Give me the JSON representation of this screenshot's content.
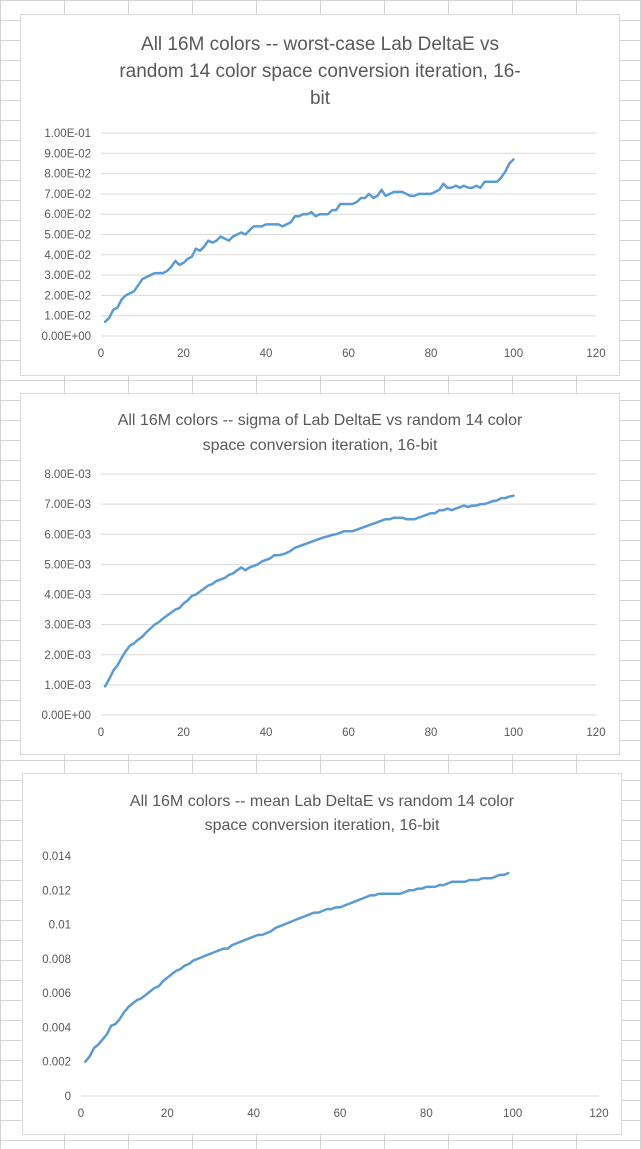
{
  "chart_data": [
    {
      "type": "line",
      "title": "All 16M colors -- worst-case Lab DeltaE vs random 14 color space conversion iteration, 16-bit",
      "title_lines": [
        "All 16M colors -- worst-case Lab DeltaE vs",
        "random 14 color space conversion iteration, 16-",
        "bit"
      ],
      "xlim": [
        0,
        120
      ],
      "x_ticks": [
        "0",
        "20",
        "40",
        "60",
        "80",
        "100",
        "120"
      ],
      "ylim": [
        0,
        0.1
      ],
      "y_ticks": [
        "0.00E+00",
        "1.00E-02",
        "2.00E-02",
        "3.00E-02",
        "4.00E-02",
        "5.00E-02",
        "6.00E-02",
        "7.00E-02",
        "8.00E-02",
        "9.00E-02",
        "1.00E-01"
      ],
      "grid": true,
      "line_color": "#5b9bd5",
      "series": [
        {
          "x": [
            1,
            2,
            3,
            4,
            5,
            6,
            7,
            8,
            9,
            10,
            11,
            12,
            13,
            14,
            15,
            16,
            17,
            18,
            19,
            20,
            21,
            22,
            23,
            24,
            25,
            26,
            27,
            28,
            29,
            30,
            31,
            32,
            33,
            34,
            35,
            36,
            37,
            38,
            39,
            40,
            41,
            42,
            43,
            44,
            45,
            46,
            47,
            48,
            49,
            50,
            51,
            52,
            53,
            54,
            55,
            56,
            57,
            58,
            59,
            60,
            61,
            62,
            63,
            64,
            65,
            66,
            67,
            68,
            69,
            70,
            71,
            72,
            73,
            74,
            75,
            76,
            77,
            78,
            79,
            80,
            81,
            82,
            83,
            84,
            85,
            86,
            87,
            88,
            89,
            90,
            91,
            92,
            93,
            94,
            95,
            96,
            97,
            98,
            99,
            100
          ],
          "y": [
            0.007,
            0.009,
            0.013,
            0.014,
            0.018,
            0.02,
            0.021,
            0.022,
            0.025,
            0.028,
            0.029,
            0.03,
            0.031,
            0.031,
            0.031,
            0.032,
            0.034,
            0.037,
            0.035,
            0.036,
            0.038,
            0.039,
            0.043,
            0.042,
            0.044,
            0.047,
            0.046,
            0.047,
            0.049,
            0.048,
            0.047,
            0.049,
            0.05,
            0.051,
            0.05,
            0.052,
            0.054,
            0.054,
            0.054,
            0.055,
            0.055,
            0.055,
            0.055,
            0.054,
            0.055,
            0.056,
            0.059,
            0.059,
            0.06,
            0.06,
            0.061,
            0.059,
            0.06,
            0.06,
            0.06,
            0.062,
            0.062,
            0.065,
            0.065,
            0.065,
            0.065,
            0.066,
            0.068,
            0.068,
            0.07,
            0.068,
            0.069,
            0.072,
            0.069,
            0.07,
            0.071,
            0.071,
            0.071,
            0.07,
            0.069,
            0.069,
            0.07,
            0.07,
            0.07,
            0.07,
            0.071,
            0.072,
            0.075,
            0.073,
            0.073,
            0.074,
            0.073,
            0.074,
            0.073,
            0.073,
            0.074,
            0.073,
            0.076,
            0.076,
            0.076,
            0.076,
            0.078,
            0.081,
            0.085,
            0.087
          ]
        }
      ]
    },
    {
      "type": "line",
      "title": "All 16M colors -- sigma of Lab DeltaE vs random 14 color space conversion iteration, 16-bit",
      "title_lines": [
        "All 16M colors -- sigma of Lab DeltaE vs random 14 color",
        "space conversion iteration, 16-bit"
      ],
      "xlim": [
        0,
        120
      ],
      "x_ticks": [
        "0",
        "20",
        "40",
        "60",
        "80",
        "100",
        "120"
      ],
      "ylim": [
        0,
        0.008
      ],
      "y_ticks": [
        "0.00E+00",
        "1.00E-03",
        "2.00E-03",
        "3.00E-03",
        "4.00E-03",
        "5.00E-03",
        "6.00E-03",
        "7.00E-03",
        "8.00E-03"
      ],
      "grid": true,
      "line_color": "#5b9bd5",
      "series": [
        {
          "x": [
            1,
            2,
            3,
            4,
            5,
            6,
            7,
            8,
            9,
            10,
            11,
            12,
            13,
            14,
            15,
            16,
            17,
            18,
            19,
            20,
            21,
            22,
            23,
            24,
            25,
            26,
            27,
            28,
            29,
            30,
            31,
            32,
            33,
            34,
            35,
            36,
            37,
            38,
            39,
            40,
            41,
            42,
            43,
            44,
            45,
            46,
            47,
            48,
            49,
            50,
            51,
            52,
            53,
            54,
            55,
            56,
            57,
            58,
            59,
            60,
            61,
            62,
            63,
            64,
            65,
            66,
            67,
            68,
            69,
            70,
            71,
            72,
            73,
            74,
            75,
            76,
            77,
            78,
            79,
            80,
            81,
            82,
            83,
            84,
            85,
            86,
            87,
            88,
            89,
            90,
            91,
            92,
            93,
            94,
            95,
            96,
            97,
            98,
            99,
            100
          ],
          "y": [
            0.00095,
            0.0012,
            0.00148,
            0.00165,
            0.0019,
            0.00212,
            0.0023,
            0.00238,
            0.0025,
            0.0026,
            0.00275,
            0.00287,
            0.003,
            0.00308,
            0.0032,
            0.0033,
            0.0034,
            0.0035,
            0.00355,
            0.0037,
            0.0038,
            0.00395,
            0.004,
            0.0041,
            0.0042,
            0.0043,
            0.00435,
            0.00445,
            0.0045,
            0.00455,
            0.00465,
            0.0047,
            0.0048,
            0.0049,
            0.0048,
            0.0049,
            0.00495,
            0.005,
            0.0051,
            0.00515,
            0.0052,
            0.0053,
            0.0053,
            0.00533,
            0.00538,
            0.00545,
            0.00555,
            0.0056,
            0.00565,
            0.0057,
            0.00575,
            0.0058,
            0.00585,
            0.0059,
            0.00593,
            0.00598,
            0.006,
            0.00605,
            0.0061,
            0.0061,
            0.0061,
            0.00615,
            0.0062,
            0.00625,
            0.0063,
            0.00635,
            0.0064,
            0.00645,
            0.0065,
            0.0065,
            0.00655,
            0.00655,
            0.00655,
            0.0065,
            0.0065,
            0.0065,
            0.00655,
            0.0066,
            0.00665,
            0.0067,
            0.0067,
            0.0068,
            0.0068,
            0.00685,
            0.0068,
            0.00685,
            0.0069,
            0.00695,
            0.0069,
            0.00695,
            0.00695,
            0.007,
            0.007,
            0.00705,
            0.0071,
            0.00712,
            0.0072,
            0.0072,
            0.00725,
            0.00728
          ]
        }
      ]
    },
    {
      "type": "line",
      "title": "All 16M colors -- mean Lab DeltaE vs random 14 color space conversion iteration, 16-bit",
      "title_lines": [
        "All 16M colors -- mean Lab DeltaE vs random 14 color",
        "space conversion iteration, 16-bit"
      ],
      "xlim": [
        0,
        120
      ],
      "x_ticks": [
        "0",
        "20",
        "40",
        "60",
        "80",
        "100",
        "120"
      ],
      "ylim": [
        0,
        0.014
      ],
      "y_ticks": [
        "0",
        "0.002",
        "0.004",
        "0.006",
        "0.008",
        "0.01",
        "0.012",
        "0.014"
      ],
      "grid": false,
      "line_color": "#5b9bd5",
      "series": [
        {
          "x": [
            1,
            2,
            3,
            4,
            5,
            6,
            7,
            8,
            9,
            10,
            11,
            12,
            13,
            14,
            15,
            16,
            17,
            18,
            19,
            20,
            21,
            22,
            23,
            24,
            25,
            26,
            27,
            28,
            29,
            30,
            31,
            32,
            33,
            34,
            35,
            36,
            37,
            38,
            39,
            40,
            41,
            42,
            43,
            44,
            45,
            46,
            47,
            48,
            49,
            50,
            51,
            52,
            53,
            54,
            55,
            56,
            57,
            58,
            59,
            60,
            61,
            62,
            63,
            64,
            65,
            66,
            67,
            68,
            69,
            70,
            71,
            72,
            73,
            74,
            75,
            76,
            77,
            78,
            79,
            80,
            81,
            82,
            83,
            84,
            85,
            86,
            87,
            88,
            89,
            90,
            91,
            92,
            93,
            94,
            95,
            96,
            97,
            98,
            99
          ],
          "y": [
            0.002,
            0.0023,
            0.0028,
            0.003,
            0.0033,
            0.0036,
            0.0041,
            0.0042,
            0.0045,
            0.0049,
            0.0052,
            0.0054,
            0.0056,
            0.0057,
            0.0059,
            0.0061,
            0.0063,
            0.0064,
            0.0067,
            0.0069,
            0.0071,
            0.0073,
            0.0074,
            0.0076,
            0.0077,
            0.0079,
            0.008,
            0.0081,
            0.0082,
            0.0083,
            0.0084,
            0.0085,
            0.0086,
            0.0086,
            0.0088,
            0.0089,
            0.009,
            0.0091,
            0.0092,
            0.0093,
            0.0094,
            0.0094,
            0.0095,
            0.0096,
            0.0098,
            0.0099,
            0.01,
            0.0101,
            0.0102,
            0.0103,
            0.0104,
            0.0105,
            0.0106,
            0.0107,
            0.0107,
            0.0108,
            0.0109,
            0.0109,
            0.011,
            0.011,
            0.0111,
            0.0112,
            0.0113,
            0.0114,
            0.0115,
            0.0116,
            0.0117,
            0.0117,
            0.0118,
            0.0118,
            0.0118,
            0.0118,
            0.0118,
            0.0118,
            0.0119,
            0.012,
            0.012,
            0.0121,
            0.0121,
            0.0122,
            0.0122,
            0.0122,
            0.0123,
            0.0123,
            0.0124,
            0.0125,
            0.0125,
            0.0125,
            0.0125,
            0.0126,
            0.0126,
            0.0126,
            0.0127,
            0.0127,
            0.0127,
            0.0128,
            0.0129,
            0.0129,
            0.013
          ]
        }
      ]
    }
  ]
}
